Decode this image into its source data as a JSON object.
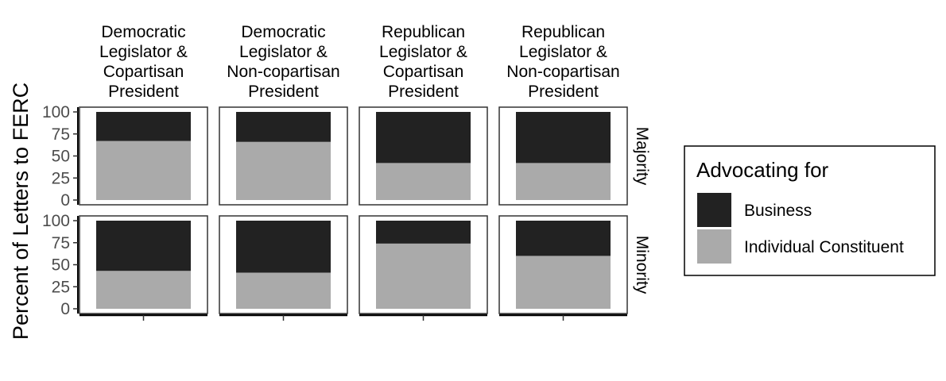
{
  "chart_data": {
    "type": "bar",
    "stacked": true,
    "ylabel": "Percent of Letters to FERC",
    "xlabel": "",
    "ylim": [
      0,
      100
    ],
    "yticks": [
      "0",
      "25",
      "50",
      "75",
      "100"
    ],
    "columns": [
      {
        "label": [
          "Democratic",
          "Legislator &",
          "Copartisan",
          "President"
        ]
      },
      {
        "label": [
          "Democratic",
          "Legislator &",
          "Non-copartisan",
          "President"
        ]
      },
      {
        "label": [
          "Republican",
          "Legislator &",
          "Copartisan",
          "President"
        ]
      },
      {
        "label": [
          "Republican",
          "Legislator &",
          "Non-copartisan",
          "President"
        ]
      }
    ],
    "rows": [
      {
        "label": "Majority"
      },
      {
        "label": "Minority"
      }
    ],
    "series": [
      {
        "name": "Business",
        "color": "#222222",
        "values": [
          [
            33,
            34,
            58,
            58
          ],
          [
            57,
            59,
            26,
            40
          ]
        ]
      },
      {
        "name": "Individual Constituent",
        "color": "#aaaaaa",
        "values": [
          [
            67,
            66,
            42,
            42
          ],
          [
            43,
            41,
            74,
            60
          ]
        ]
      }
    ],
    "legend": {
      "title": "Advocating for",
      "placement": "right",
      "items": [
        "Business",
        "Individual Constituent"
      ]
    },
    "grid": false
  }
}
